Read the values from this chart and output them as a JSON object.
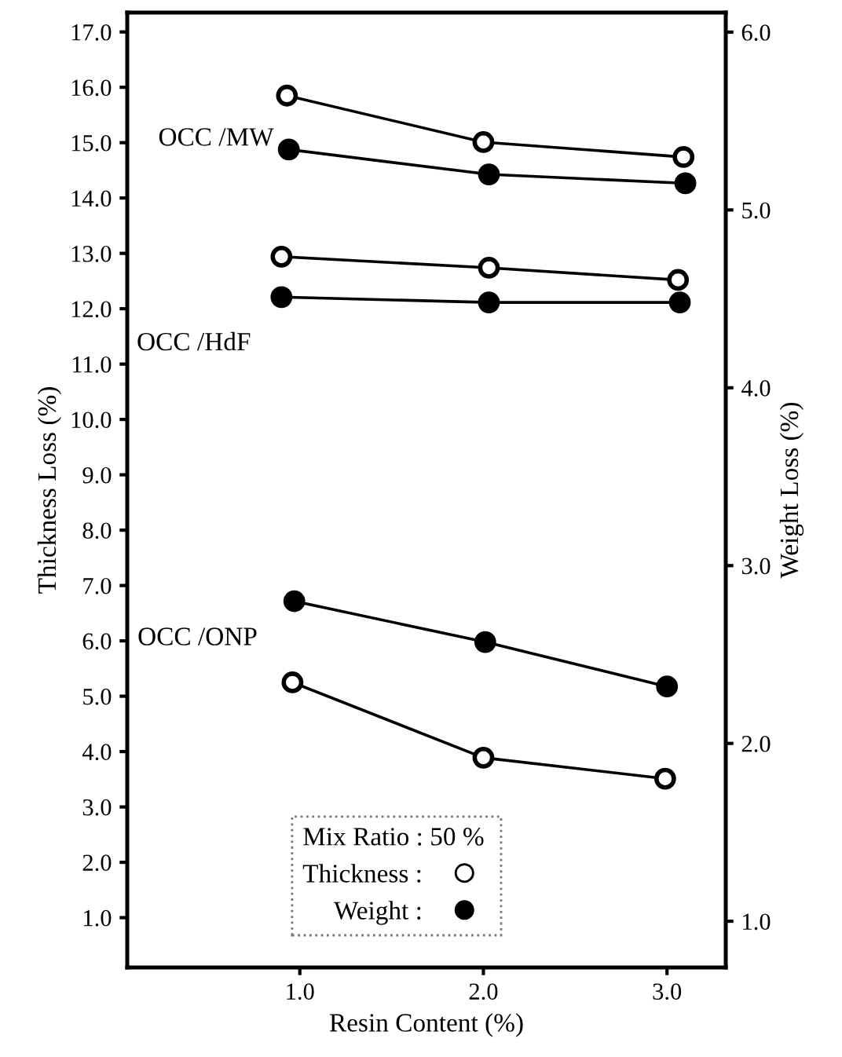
{
  "chart_data": {
    "type": "line",
    "xlabel": "Resin Content (%)",
    "ylabel": "Thickness Loss (%)",
    "y2label": "Weight Loss (%)",
    "legend_title": "Mix Ratio : 50 %",
    "legend": "bottom",
    "marker": "circle",
    "line_style": "solid",
    "grid": false,
    "color": "#000000",
    "xlim": [
      0.06,
      3.32
    ],
    "xticks": [
      {
        "value": 1,
        "label": "1.0"
      },
      {
        "value": 2,
        "label": "2.0"
      },
      {
        "value": 3,
        "label": "3.0"
      }
    ],
    "ylim": [
      0.1,
      17.35
    ],
    "yticks": [
      {
        "value": 1,
        "label": "1.0"
      },
      {
        "value": 2,
        "label": "2.0"
      },
      {
        "value": 3,
        "label": "3.0"
      },
      {
        "value": 4,
        "label": "4.0"
      },
      {
        "value": 5,
        "label": "5.0"
      },
      {
        "value": 6,
        "label": "6.0"
      },
      {
        "value": 7,
        "label": "7.0"
      },
      {
        "value": 8,
        "label": "8.0"
      },
      {
        "value": 9,
        "label": "9.0"
      },
      {
        "value": 10,
        "label": "10.0"
      },
      {
        "value": 11,
        "label": "11.0"
      },
      {
        "value": 12,
        "label": "12.0"
      },
      {
        "value": 13,
        "label": "13.0"
      },
      {
        "value": 14,
        "label": "14.0"
      },
      {
        "value": 15,
        "label": "15.0"
      },
      {
        "value": 16,
        "label": "16.0"
      },
      {
        "value": 17,
        "label": "17.0"
      }
    ],
    "y2lim": [
      0.74,
      6.11
    ],
    "y2ticks": [
      {
        "value": 1,
        "label": "1.0"
      },
      {
        "value": 2,
        "label": "2.0"
      },
      {
        "value": 3,
        "label": "3.0"
      },
      {
        "value": 4,
        "label": "4.0"
      },
      {
        "value": 5,
        "label": "5.0"
      },
      {
        "value": 6,
        "label": "6.0"
      }
    ],
    "series": [
      {
        "name": "Thickness :",
        "color": "#ffffff",
        "x": [
          0.93,
          2.0,
          3.09
        ],
        "values": [
          15.85,
          15.01,
          14.74
        ]
      },
      {
        "name": "Weight :",
        "color": "#000000",
        "axis": "y2",
        "x": [
          0.94,
          2.03,
          3.1
        ],
        "values": [
          5.34,
          5.2,
          5.15
        ]
      },
      {
        "color": "#ffffff",
        "x": [
          0.9,
          2.03,
          3.06
        ],
        "values": [
          12.94,
          12.74,
          12.52
        ]
      },
      {
        "color": "#000000",
        "axis": "y2",
        "x": [
          0.9,
          2.03,
          3.07
        ],
        "values": [
          4.51,
          4.48,
          4.48
        ]
      },
      {
        "color": "#ffffff",
        "x": [
          0.96,
          2.0,
          2.99
        ],
        "values": [
          5.25,
          3.89,
          3.51
        ]
      },
      {
        "color": "#000000",
        "axis": "y2",
        "x": [
          0.97,
          2.01,
          3.0
        ],
        "values": [
          2.8,
          2.57,
          2.32
        ]
      }
    ],
    "annotations": [
      "OCC /MW",
      "OCC /HdF",
      "OCC /ONP"
    ]
  }
}
